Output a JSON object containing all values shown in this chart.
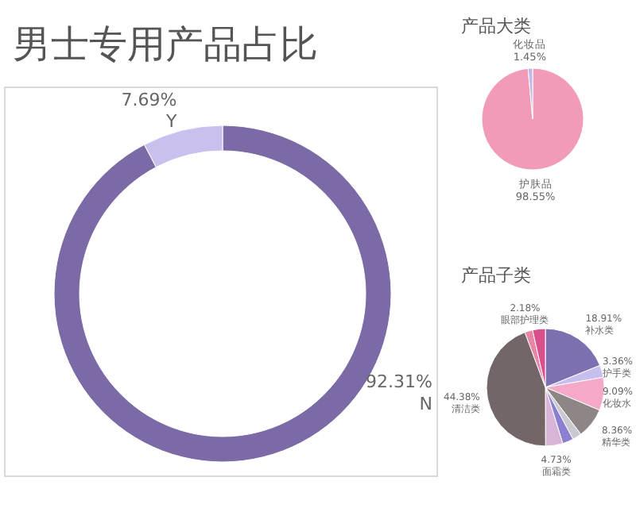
{
  "chart_data": [
    {
      "type": "donut",
      "title": "男士专用产品占比",
      "categories": [
        "N",
        "Y"
      ],
      "values": [
        92.31,
        7.69
      ],
      "colors": [
        "#7b6aa6",
        "#c9c0ee"
      ],
      "value_labels": [
        "92.31%",
        "7.69%"
      ]
    },
    {
      "type": "pie",
      "title": "产品大类",
      "categories": [
        "护肤品",
        "化妆品"
      ],
      "values": [
        98.55,
        1.45
      ],
      "colors": [
        "#f29bb8",
        "#c6b8e6"
      ],
      "value_labels": [
        "98.55%",
        "1.45%"
      ]
    },
    {
      "type": "pie",
      "title": "产品子类",
      "categories": [
        "补水类",
        "护手类",
        "化妆水",
        "精华类",
        null,
        null,
        "面霜类",
        "清洁类",
        "眼部护理类",
        null
      ],
      "values": [
        18.91,
        3.36,
        9.09,
        8.36,
        2.5,
        3.0,
        4.73,
        44.38,
        2.18,
        3.49
      ],
      "colors": [
        "#7d6fb0",
        "#c7bfef",
        "#f5a8c8",
        "#8e8585",
        "#c9c9cf",
        "#8a7fd0",
        "#d8b4d8",
        "#726666",
        "#e986a8",
        "#d94f8c"
      ],
      "value_labels": [
        "18.91%",
        "3.36%",
        "9.09%",
        "8.36%",
        null,
        null,
        "4.73%",
        "44.38%",
        "2.18%",
        null
      ]
    }
  ]
}
